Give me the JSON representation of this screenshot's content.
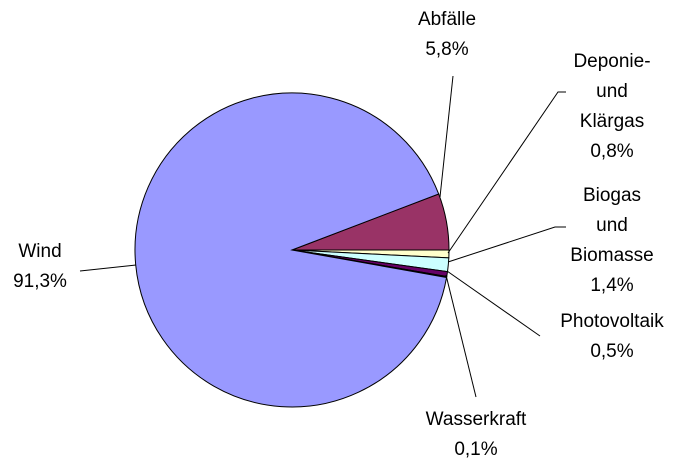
{
  "chart_data": {
    "type": "pie",
    "categories": [
      "Abfälle",
      "Deponie-\nund Klärgas",
      "Biogas und\nBiomasse",
      "Photovoltaik",
      "Wasserkraft",
      "Wind"
    ],
    "values": [
      5.8,
      0.8,
      1.4,
      0.5,
      0.1,
      91.3
    ],
    "value_labels": [
      "5,8%",
      "0,8%",
      "1,4%",
      "0,5%",
      "0,1%",
      "91,3%"
    ],
    "colors": [
      "#993366",
      "#ffffcc",
      "#ccffff",
      "#660066",
      "#3333cc",
      "#9999ff"
    ]
  }
}
